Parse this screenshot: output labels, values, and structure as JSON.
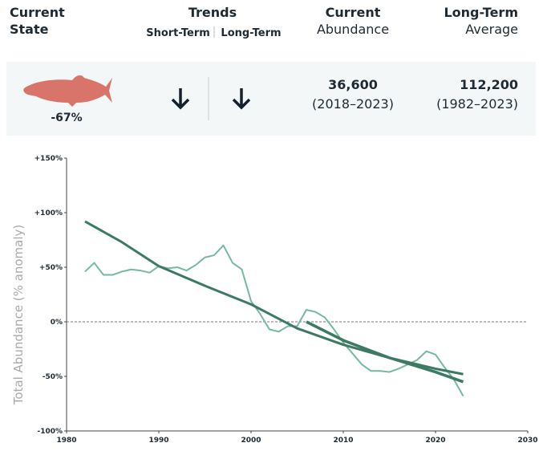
{
  "header": {
    "current_state": [
      "Current",
      "State"
    ],
    "trends": "Trends",
    "short_term": "Short-Term",
    "long_term": "Long-Term",
    "current_abundance": [
      "Current",
      "Abundance"
    ],
    "long_term_average": [
      "Long-Term",
      "Average"
    ]
  },
  "summary": {
    "state": "-67%",
    "current_abundance": "36,600",
    "current_period": "(2018–2023)",
    "average": "112,200",
    "average_period": "(1982–2023)"
  },
  "chart_data": {
    "type": "line",
    "ylabel": "Total Abundance (% anomaly)",
    "xlim": [
      1980,
      2030
    ],
    "xticks": [
      1980,
      1990,
      2000,
      2010,
      2020,
      2030
    ],
    "ylim": [
      -100,
      150
    ],
    "yticks": [
      {
        "value": -100,
        "label": "-100%"
      },
      {
        "value": -50,
        "label": "-50%"
      },
      {
        "value": 0,
        "label": "0%"
      },
      {
        "value": 50,
        "label": "+50%"
      },
      {
        "value": 100,
        "label": "+100%"
      },
      {
        "value": 150,
        "label": "+150%"
      }
    ],
    "series": [
      {
        "color": "#74b9a0",
        "width": 2,
        "x": [
          1982,
          1983,
          1984,
          1985,
          1986,
          1987,
          1988,
          1989,
          1990,
          1991,
          1992,
          1993,
          1994,
          1995,
          1996,
          1997,
          1998,
          1999,
          2000,
          2001,
          2002,
          2003,
          2004,
          2005,
          2006,
          2007,
          2008,
          2009,
          2010,
          2011,
          2012,
          2013,
          2014,
          2015,
          2016,
          2017,
          2018,
          2019,
          2020,
          2021,
          2022,
          2023
        ],
        "values": [
          46,
          54,
          43,
          43,
          46,
          48,
          47,
          45,
          51,
          49,
          50,
          47,
          52,
          59,
          61,
          70,
          54,
          48,
          19,
          7,
          -7,
          -9,
          -4,
          -4,
          11,
          9,
          4,
          -7,
          -19,
          -29,
          -39,
          -45,
          -45,
          -46,
          -43,
          -39,
          -35,
          -27,
          -30,
          -42,
          -53,
          -68
        ]
      },
      {
        "color": "#3d7a63",
        "width": 3,
        "x": [
          1982,
          1986,
          1990,
          1995,
          2000,
          2005,
          2010,
          2015,
          2020,
          2023
        ],
        "values": [
          92,
          73,
          51,
          33,
          16,
          -6,
          -21,
          -33,
          -43,
          -48
        ]
      },
      {
        "color": "#3d7a63",
        "width": 3.5,
        "x": [
          2006,
          2010,
          2015,
          2020,
          2023
        ],
        "values": [
          0,
          -17,
          -33,
          -46,
          -55
        ]
      }
    ]
  }
}
